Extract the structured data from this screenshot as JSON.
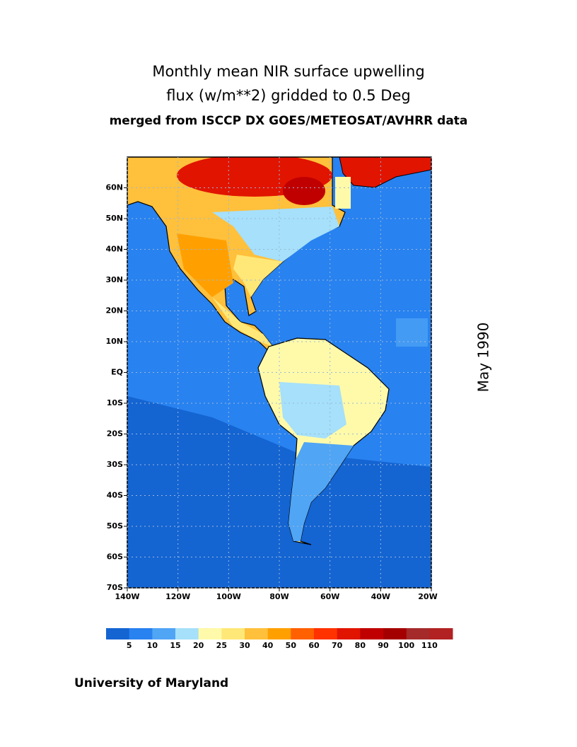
{
  "title": [
    "Monthly mean NIR surface upwelling",
    "flux (w/m**2) gridded to 0.5 Deg"
  ],
  "subtitle": "merged from ISCCP DX GOES/METEOSAT/AVHRR data",
  "map": {
    "lonlim": [
      -140,
      -20
    ],
    "latlim": [
      -70,
      70
    ],
    "lon_ticks": [
      {
        "value": -140,
        "label": "140W"
      },
      {
        "value": -120,
        "label": "120W"
      },
      {
        "value": -100,
        "label": "100W"
      },
      {
        "value": -80,
        "label": "80W"
      },
      {
        "value": -60,
        "label": "60W"
      },
      {
        "value": -40,
        "label": "40W"
      },
      {
        "value": -20,
        "label": "20W"
      }
    ],
    "lat_ticks": [
      {
        "value": 60,
        "label": "60N"
      },
      {
        "value": 50,
        "label": "50N"
      },
      {
        "value": 40,
        "label": "40N"
      },
      {
        "value": 30,
        "label": "30N"
      },
      {
        "value": 20,
        "label": "20N"
      },
      {
        "value": 10,
        "label": "10N"
      },
      {
        "value": 0,
        "label": "EQ"
      },
      {
        "value": -10,
        "label": "10S"
      },
      {
        "value": -20,
        "label": "20S"
      },
      {
        "value": -30,
        "label": "30S"
      },
      {
        "value": -40,
        "label": "40S"
      },
      {
        "value": -50,
        "label": "50S"
      },
      {
        "value": -60,
        "label": "60S"
      },
      {
        "value": -70,
        "label": "70S"
      }
    ],
    "grid": true
  },
  "colorbar": {
    "colors": [
      "#1464d2",
      "#2882f0",
      "#50a5f5",
      "#a6e0fa",
      "#fffaaa",
      "#ffe878",
      "#ffc03c",
      "#ffa000",
      "#ff6000",
      "#ff3200",
      "#e11400",
      "#c00000",
      "#a50000",
      "#a52a2a",
      "#b22222"
    ],
    "ticks": [
      5,
      10,
      15,
      20,
      25,
      30,
      40,
      50,
      60,
      70,
      80,
      90,
      100,
      110
    ]
  },
  "date": "May 1990",
  "credit": "University of Maryland"
}
